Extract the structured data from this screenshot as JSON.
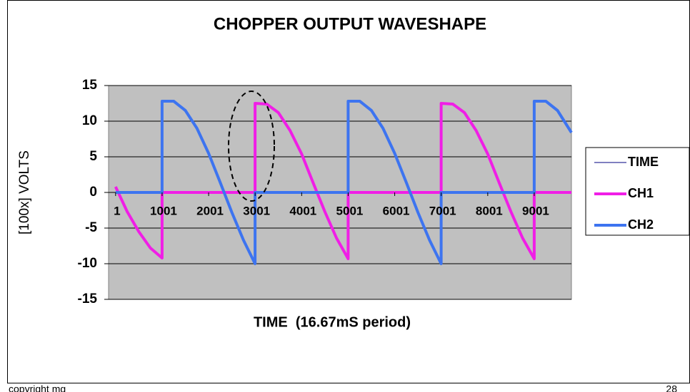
{
  "chart_data": {
    "type": "line",
    "title": "CHOPPER OUTPUT WAVESHAPE",
    "xlabel": "TIME  (16.67mS period)",
    "ylabel": "[100x] VOLTS",
    "xlim": [
      -150,
      9800
    ],
    "xticks": [
      1,
      1001,
      2001,
      3001,
      4001,
      5001,
      6001,
      7001,
      8001,
      9001
    ],
    "ylim": [
      -15,
      15
    ],
    "yticks": [
      -15,
      -10,
      -5,
      0,
      5,
      10,
      15
    ],
    "grid": true,
    "legend": "right",
    "series": [
      {
        "name": "TIME",
        "color": "#000080",
        "x": [],
        "values": []
      },
      {
        "name": "CH1",
        "color": "#f01ee6",
        "x": [
          0,
          250,
          500,
          750,
          1000,
          1000,
          3000,
          3000,
          3250,
          3500,
          3750,
          4000,
          4250,
          4500,
          4750,
          5000,
          5000,
          7000,
          7000,
          7250,
          7500,
          7750,
          8000,
          8250,
          8500,
          8750,
          9000,
          9000,
          9800
        ],
        "values": [
          0.8,
          -2.7,
          -5.5,
          -7.8,
          -9.2,
          0,
          0,
          12.5,
          12.4,
          11.2,
          8.7,
          5.4,
          1.3,
          -2.7,
          -6.4,
          -9.3,
          0,
          0,
          12.5,
          12.4,
          11.2,
          8.7,
          5.4,
          1.3,
          -2.7,
          -6.4,
          -9.3,
          0,
          0
        ]
      },
      {
        "name": "CH2",
        "color": "#3d74f0",
        "x": [
          0,
          1000,
          1000,
          1250,
          1500,
          1750,
          2000,
          2250,
          2500,
          2750,
          3000,
          3000,
          5000,
          5000,
          5250,
          5500,
          5750,
          6000,
          6250,
          6500,
          6750,
          7000,
          7000,
          9000,
          9000,
          9250,
          9500,
          9800
        ],
        "values": [
          0,
          0,
          12.8,
          12.8,
          11.5,
          9.0,
          5.5,
          1.4,
          -2.8,
          -6.7,
          -10.0,
          0,
          0,
          12.8,
          12.8,
          11.5,
          9.0,
          5.5,
          1.4,
          -2.8,
          -6.7,
          -10.0,
          0,
          0,
          12.8,
          12.8,
          11.5,
          8.4
        ]
      }
    ]
  },
  "footer": {
    "left": "copyright mg",
    "right": "28"
  }
}
